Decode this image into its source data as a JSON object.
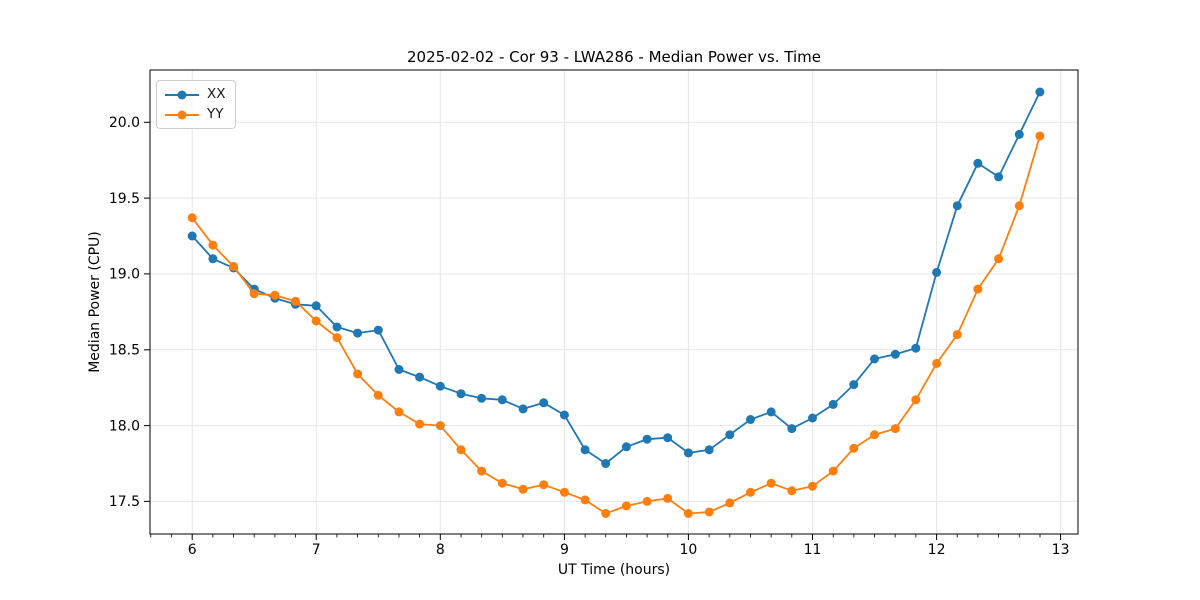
{
  "chart_data": {
    "type": "line",
    "title": "2025-02-02 - Cor 93 - LWA286 - Median Power vs. Time",
    "xlabel": "UT Time (hours)",
    "ylabel": "Median Power (CPU)",
    "x_ticks": [
      6,
      7,
      8,
      9,
      10,
      11,
      12,
      13
    ],
    "y_ticks": [
      17.5,
      18.0,
      18.5,
      19.0,
      19.5,
      20.0
    ],
    "xlim": [
      5.66,
      13.14
    ],
    "ylim": [
      17.285,
      20.345
    ],
    "x_minor_step": 0.1666667,
    "grid": true,
    "grid_color": "#e6e6e6",
    "legend_position": "upper left",
    "x": [
      6.0,
      6.167,
      6.333,
      6.5,
      6.667,
      6.833,
      7.0,
      7.167,
      7.333,
      7.5,
      7.667,
      7.833,
      8.0,
      8.167,
      8.333,
      8.5,
      8.667,
      8.833,
      9.0,
      9.167,
      9.333,
      9.5,
      9.667,
      9.833,
      10.0,
      10.167,
      10.333,
      10.5,
      10.667,
      10.833,
      11.0,
      11.167,
      11.333,
      11.5,
      11.667,
      11.833,
      12.0,
      12.167,
      12.333,
      12.5,
      12.667,
      12.833
    ],
    "series": [
      {
        "name": "XX",
        "color": "#1f77b4",
        "values": [
          19.25,
          19.1,
          19.04,
          18.9,
          18.84,
          18.8,
          18.79,
          18.65,
          18.61,
          18.63,
          18.37,
          18.32,
          18.26,
          18.21,
          18.18,
          18.17,
          18.11,
          18.15,
          18.07,
          17.84,
          17.75,
          17.86,
          17.91,
          17.92,
          17.82,
          17.84,
          17.94,
          18.04,
          18.09,
          17.98,
          18.05,
          18.14,
          18.27,
          18.44,
          18.47,
          18.51,
          19.01,
          19.45,
          19.73,
          19.64,
          19.92,
          20.2
        ]
      },
      {
        "name": "YY",
        "color": "#ff7f0e",
        "values": [
          19.37,
          19.19,
          19.05,
          18.87,
          18.86,
          18.82,
          18.69,
          18.58,
          18.34,
          18.2,
          18.09,
          18.01,
          18.0,
          17.84,
          17.7,
          17.62,
          17.58,
          17.61,
          17.56,
          17.51,
          17.42,
          17.47,
          17.5,
          17.52,
          17.42,
          17.43,
          17.49,
          17.56,
          17.62,
          17.57,
          17.6,
          17.7,
          17.85,
          17.94,
          17.98,
          18.17,
          18.41,
          18.6,
          18.9,
          19.1,
          19.45,
          19.91
        ]
      }
    ]
  }
}
